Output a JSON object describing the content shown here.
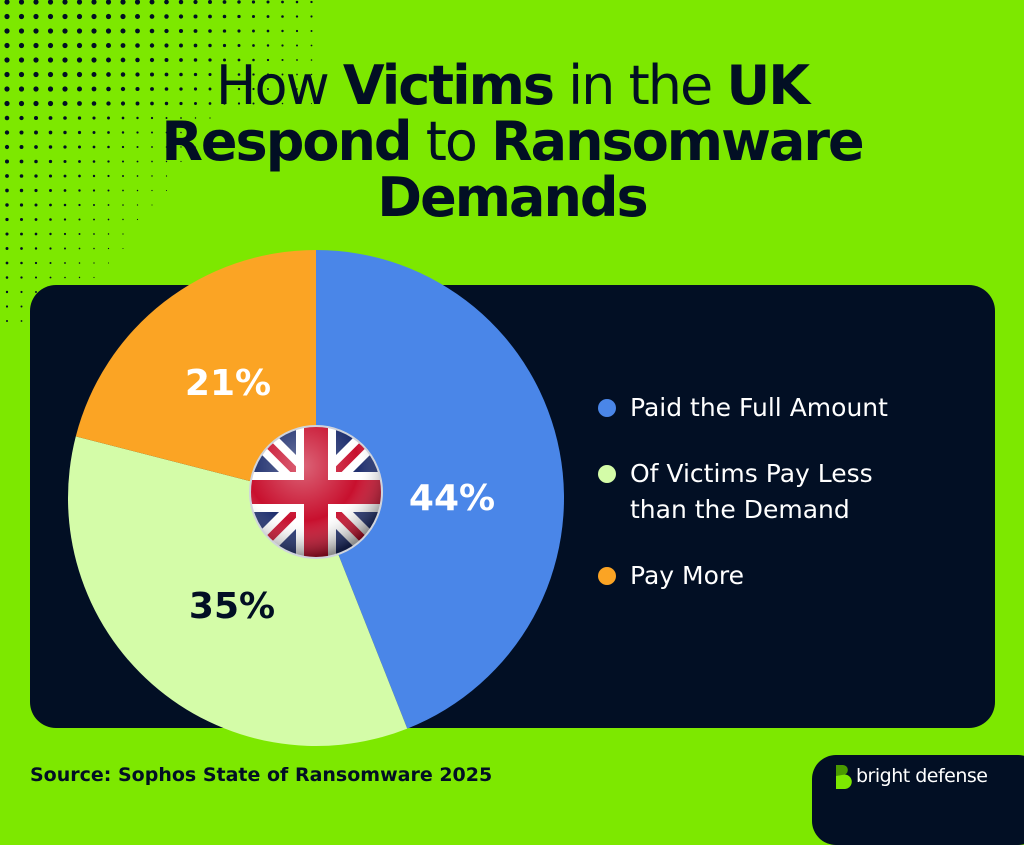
{
  "title": {
    "line1": [
      {
        "text": "How ",
        "bold": false
      },
      {
        "text": "Victims",
        "bold": true
      },
      {
        "text": " in the ",
        "bold": false
      },
      {
        "text": "UK",
        "bold": true
      }
    ],
    "line2": [
      {
        "text": "Respond",
        "bold": true
      },
      {
        "text": " to ",
        "bold": false
      },
      {
        "text": "Ransomware",
        "bold": true
      }
    ],
    "line3": [
      {
        "text": "Demands",
        "bold": true
      }
    ]
  },
  "chart_data": {
    "type": "pie",
    "title": "How Victims in the UK Respond to Ransomware Demands",
    "slices": [
      {
        "label": "Paid the Full Amount",
        "value": 44,
        "display": "44%",
        "color": "#4a86e8"
      },
      {
        "label": "Of Victims Pay Less than the Demand",
        "value": 35,
        "display": "35%",
        "color": "#d4fca8"
      },
      {
        "label": "Pay More",
        "value": 21,
        "display": "21%",
        "color": "#fba424"
      }
    ],
    "legend_position": "right",
    "center_icon": "uk-flag-icon"
  },
  "legend": {
    "items": [
      {
        "line1": "Paid the Full Amount",
        "line2": ""
      },
      {
        "line1": "Of Victims Pay Less",
        "line2": "than the Demand"
      },
      {
        "line1": "Pay More",
        "line2": ""
      }
    ]
  },
  "source": "Source: Sophos State of Ransomware 2025",
  "logo": {
    "text": "bright defense"
  },
  "colors": {
    "background": "#7de800",
    "panel": "#020f24"
  }
}
